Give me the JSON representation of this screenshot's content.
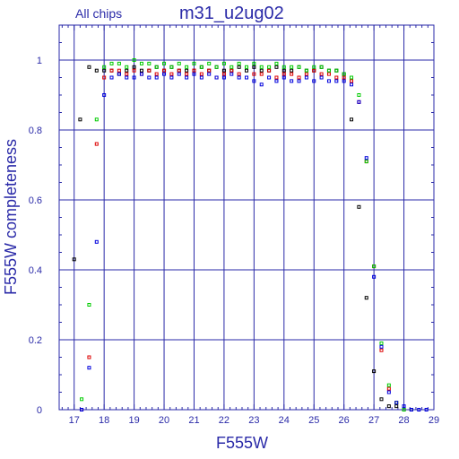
{
  "chart_data": {
    "type": "scatter",
    "title": "m31_u2ug02",
    "subtitle": "All chips",
    "xlabel": "F555W",
    "ylabel": "F555W completeness",
    "xlim": [
      16.5,
      29
    ],
    "ylim": [
      0,
      1.1
    ],
    "xticks": [
      17,
      18,
      19,
      20,
      21,
      22,
      23,
      24,
      25,
      26,
      27,
      28,
      29
    ],
    "yticks": [
      0,
      0.2,
      0.4,
      0.6,
      0.8,
      1
    ],
    "ytick_labels": [
      "0",
      "0.2",
      "0.4",
      "0.6",
      "0.8",
      "1"
    ],
    "grid": true,
    "colors": {
      "axis": "#2a2aa8",
      "grid": "#2a2aa8"
    },
    "series": [
      {
        "color": "#000000",
        "points": [
          [
            17.0,
            0.43
          ],
          [
            17.2,
            0.83
          ],
          [
            17.5,
            0.98
          ],
          [
            17.75,
            0.97
          ],
          [
            18.0,
            0.97
          ],
          [
            18.25,
            0.97
          ],
          [
            18.5,
            0.96
          ],
          [
            18.75,
            0.97
          ],
          [
            19.0,
            0.98
          ],
          [
            19.25,
            0.97
          ],
          [
            19.5,
            0.97
          ],
          [
            19.75,
            0.98
          ],
          [
            20.0,
            0.97
          ],
          [
            20.25,
            0.98
          ],
          [
            20.5,
            0.97
          ],
          [
            20.75,
            0.97
          ],
          [
            21.0,
            0.97
          ],
          [
            21.25,
            0.98
          ],
          [
            21.5,
            0.97
          ],
          [
            21.75,
            0.98
          ],
          [
            22.0,
            0.97
          ],
          [
            22.25,
            0.97
          ],
          [
            22.5,
            0.98
          ],
          [
            22.75,
            0.97
          ],
          [
            23.0,
            0.98
          ],
          [
            23.25,
            0.97
          ],
          [
            23.5,
            0.97
          ],
          [
            23.75,
            0.98
          ],
          [
            24.0,
            0.97
          ],
          [
            24.25,
            0.97
          ],
          [
            24.5,
            0.98
          ],
          [
            24.75,
            0.97
          ],
          [
            25.0,
            0.97
          ],
          [
            25.25,
            0.98
          ],
          [
            25.5,
            0.97
          ],
          [
            25.75,
            0.97
          ],
          [
            26.0,
            0.96
          ],
          [
            26.25,
            0.83
          ],
          [
            26.5,
            0.58
          ],
          [
            26.75,
            0.32
          ],
          [
            27.0,
            0.11
          ],
          [
            27.25,
            0.03
          ],
          [
            27.5,
            0.01
          ],
          [
            27.75,
            0.01
          ],
          [
            28.0,
            0.0
          ],
          [
            28.25,
            0.0
          ]
        ]
      },
      {
        "color": "#dd0000",
        "points": [
          [
            17.25,
            0.0
          ],
          [
            17.5,
            0.15
          ],
          [
            17.75,
            0.76
          ],
          [
            18.0,
            0.95
          ],
          [
            18.25,
            0.97
          ],
          [
            18.5,
            0.97
          ],
          [
            18.75,
            0.96
          ],
          [
            19.0,
            0.97
          ],
          [
            19.25,
            0.96
          ],
          [
            19.5,
            0.97
          ],
          [
            19.75,
            0.96
          ],
          [
            20.0,
            0.97
          ],
          [
            20.25,
            0.96
          ],
          [
            20.5,
            0.97
          ],
          [
            20.75,
            0.96
          ],
          [
            21.0,
            0.97
          ],
          [
            21.25,
            0.96
          ],
          [
            21.5,
            0.97
          ],
          [
            21.75,
            0.95
          ],
          [
            22.0,
            0.96
          ],
          [
            22.25,
            0.97
          ],
          [
            22.5,
            0.96
          ],
          [
            22.75,
            0.95
          ],
          [
            23.0,
            0.96
          ],
          [
            23.25,
            0.96
          ],
          [
            23.5,
            0.97
          ],
          [
            23.75,
            0.95
          ],
          [
            24.0,
            0.96
          ],
          [
            24.25,
            0.96
          ],
          [
            24.5,
            0.95
          ],
          [
            24.75,
            0.96
          ],
          [
            25.0,
            0.97
          ],
          [
            25.25,
            0.96
          ],
          [
            25.5,
            0.96
          ],
          [
            25.75,
            0.95
          ],
          [
            26.0,
            0.95
          ],
          [
            26.25,
            0.94
          ],
          [
            26.5,
            0.88
          ],
          [
            26.75,
            0.71
          ],
          [
            27.0,
            0.41
          ],
          [
            27.25,
            0.17
          ],
          [
            27.5,
            0.06
          ],
          [
            27.75,
            0.02
          ],
          [
            28.0,
            0.0
          ],
          [
            28.25,
            0.0
          ]
        ]
      },
      {
        "color": "#00cc00",
        "points": [
          [
            17.25,
            0.03
          ],
          [
            17.5,
            0.3
          ],
          [
            17.75,
            0.83
          ],
          [
            18.0,
            0.98
          ],
          [
            18.25,
            0.99
          ],
          [
            18.5,
            0.99
          ],
          [
            18.75,
            0.98
          ],
          [
            19.0,
            1.0
          ],
          [
            19.25,
            0.99
          ],
          [
            19.5,
            0.99
          ],
          [
            19.75,
            0.98
          ],
          [
            20.0,
            0.99
          ],
          [
            20.25,
            0.98
          ],
          [
            20.5,
            0.99
          ],
          [
            20.75,
            0.98
          ],
          [
            21.0,
            0.99
          ],
          [
            21.25,
            0.98
          ],
          [
            21.5,
            0.99
          ],
          [
            21.75,
            0.98
          ],
          [
            22.0,
            0.99
          ],
          [
            22.25,
            0.98
          ],
          [
            22.5,
            0.99
          ],
          [
            22.75,
            0.98
          ],
          [
            23.0,
            0.99
          ],
          [
            23.25,
            0.98
          ],
          [
            23.5,
            0.98
          ],
          [
            23.75,
            0.99
          ],
          [
            24.0,
            0.98
          ],
          [
            24.25,
            0.98
          ],
          [
            24.5,
            0.98
          ],
          [
            24.75,
            0.97
          ],
          [
            25.0,
            0.98
          ],
          [
            25.25,
            0.98
          ],
          [
            25.5,
            0.97
          ],
          [
            25.75,
            0.97
          ],
          [
            26.0,
            0.96
          ],
          [
            26.25,
            0.95
          ],
          [
            26.5,
            0.9
          ],
          [
            26.75,
            0.71
          ],
          [
            27.0,
            0.41
          ],
          [
            27.25,
            0.19
          ],
          [
            27.5,
            0.07
          ],
          [
            27.75,
            0.02
          ],
          [
            28.0,
            0.0
          ],
          [
            28.25,
            0.0
          ]
        ]
      },
      {
        "color": "#0000dd",
        "points": [
          [
            17.25,
            0.0
          ],
          [
            17.5,
            0.12
          ],
          [
            17.75,
            0.48
          ],
          [
            18.0,
            0.9
          ],
          [
            18.25,
            0.95
          ],
          [
            18.5,
            0.96
          ],
          [
            18.75,
            0.95
          ],
          [
            19.0,
            0.95
          ],
          [
            19.25,
            0.96
          ],
          [
            19.5,
            0.95
          ],
          [
            19.75,
            0.95
          ],
          [
            20.0,
            0.96
          ],
          [
            20.25,
            0.95
          ],
          [
            20.5,
            0.96
          ],
          [
            20.75,
            0.95
          ],
          [
            21.0,
            0.96
          ],
          [
            21.25,
            0.95
          ],
          [
            21.5,
            0.96
          ],
          [
            21.75,
            0.95
          ],
          [
            22.0,
            0.95
          ],
          [
            22.25,
            0.96
          ],
          [
            22.5,
            0.95
          ],
          [
            22.75,
            0.95
          ],
          [
            23.0,
            0.94
          ],
          [
            23.25,
            0.93
          ],
          [
            23.5,
            0.95
          ],
          [
            23.75,
            0.94
          ],
          [
            24.0,
            0.95
          ],
          [
            24.25,
            0.94
          ],
          [
            24.5,
            0.94
          ],
          [
            24.75,
            0.95
          ],
          [
            25.0,
            0.94
          ],
          [
            25.25,
            0.95
          ],
          [
            25.5,
            0.94
          ],
          [
            25.75,
            0.94
          ],
          [
            26.0,
            0.94
          ],
          [
            26.25,
            0.93
          ],
          [
            26.5,
            0.88
          ],
          [
            26.75,
            0.72
          ],
          [
            27.0,
            0.38
          ],
          [
            27.25,
            0.18
          ],
          [
            27.5,
            0.05
          ],
          [
            27.75,
            0.02
          ],
          [
            28.0,
            0.01
          ],
          [
            28.25,
            0.0
          ],
          [
            28.5,
            0.0
          ],
          [
            28.75,
            0.0
          ]
        ]
      }
    ]
  }
}
